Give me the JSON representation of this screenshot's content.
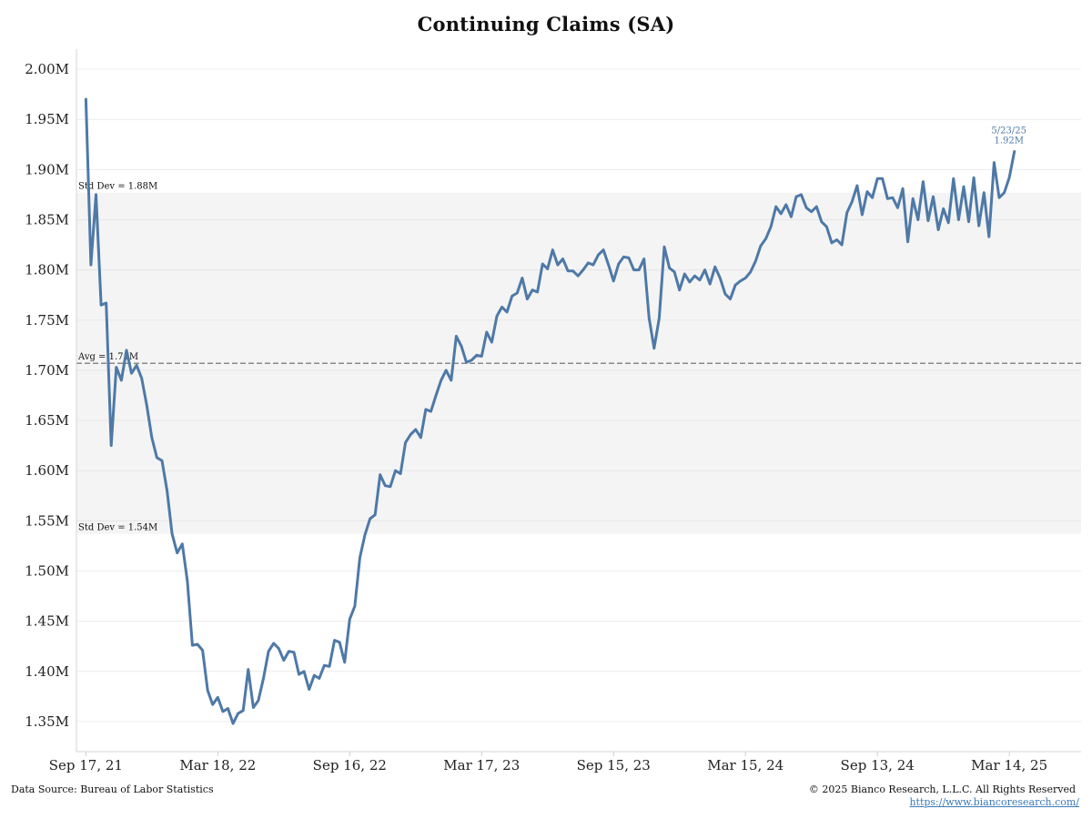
{
  "chart_data": {
    "type": "line",
    "title": "Continuing Claims (SA)",
    "y_unit": "millions",
    "ylim": [
      1.32,
      2.02
    ],
    "yticks": [
      2.0,
      1.95,
      1.9,
      1.85,
      1.8,
      1.75,
      1.7,
      1.65,
      1.6,
      1.55,
      1.5,
      1.45,
      1.4,
      1.35
    ],
    "ytick_labels": [
      "2.00M",
      "1.95M",
      "1.90M",
      "1.85M",
      "1.80M",
      "1.75M",
      "1.70M",
      "1.65M",
      "1.60M",
      "1.55M",
      "1.50M",
      "1.45M",
      "1.40M",
      "1.35M"
    ],
    "xlim": [
      "2021-09-04",
      "2025-06-21"
    ],
    "xticks": [
      "2021-09-17",
      "2022-03-18",
      "2022-09-16",
      "2023-03-17",
      "2023-09-15",
      "2024-03-15",
      "2024-09-13",
      "2025-03-14"
    ],
    "xtick_labels": [
      "Sep 17, 21",
      "Mar 18, 22",
      "Sep 16, 22",
      "Mar 17, 23",
      "Sep 15, 23",
      "Mar 15, 24",
      "Sep 13, 24",
      "Mar 14, 25"
    ],
    "band": {
      "low": 1.537,
      "high": 1.877,
      "upper_label": "Std Dev = 1.88M",
      "lower_label": "Std Dev = 1.54M"
    },
    "average": {
      "value": 1.707,
      "label": "Avg = 1.71M"
    },
    "end_label": {
      "date": "5/23/25",
      "value": "1.92M"
    },
    "grid": "horizontal",
    "series": [
      {
        "color": "#4e79a7",
        "start_date": "2021-09-17",
        "step_days": 7,
        "values": [
          1.97,
          1.805,
          1.875,
          1.765,
          1.767,
          1.625,
          1.703,
          1.69,
          1.72,
          1.697,
          1.705,
          1.692,
          1.665,
          1.633,
          1.613,
          1.61,
          1.58,
          1.537,
          1.518,
          1.527,
          1.49,
          1.426,
          1.427,
          1.421,
          1.381,
          1.367,
          1.374,
          1.36,
          1.363,
          1.348,
          1.358,
          1.361,
          1.402,
          1.364,
          1.371,
          1.393,
          1.42,
          1.428,
          1.423,
          1.411,
          1.42,
          1.419,
          1.397,
          1.4,
          1.382,
          1.396,
          1.393,
          1.406,
          1.405,
          1.431,
          1.429,
          1.409,
          1.452,
          1.465,
          1.513,
          1.536,
          1.552,
          1.556,
          1.596,
          1.585,
          1.584,
          1.6,
          1.597,
          1.628,
          1.636,
          1.641,
          1.633,
          1.661,
          1.659,
          1.675,
          1.69,
          1.7,
          1.69,
          1.734,
          1.724,
          1.708,
          1.71,
          1.715,
          1.714,
          1.738,
          1.728,
          1.754,
          1.763,
          1.758,
          1.774,
          1.777,
          1.792,
          1.771,
          1.78,
          1.778,
          1.806,
          1.801,
          1.82,
          1.805,
          1.811,
          1.799,
          1.799,
          1.794,
          1.8,
          1.807,
          1.805,
          1.815,
          1.82,
          1.805,
          1.789,
          1.806,
          1.813,
          1.812,
          1.8,
          1.8,
          1.811,
          1.752,
          1.722,
          1.752,
          1.823,
          1.802,
          1.798,
          1.78,
          1.796,
          1.788,
          1.794,
          1.79,
          1.8,
          1.786,
          1.803,
          1.792,
          1.776,
          1.771,
          1.785,
          1.789,
          1.792,
          1.798,
          1.809,
          1.824,
          1.831,
          1.843,
          1.863,
          1.856,
          1.865,
          1.853,
          1.873,
          1.875,
          1.862,
          1.858,
          1.863,
          1.848,
          1.843,
          1.827,
          1.83,
          1.825,
          1.857,
          1.868,
          1.884,
          1.855,
          1.878,
          1.872,
          1.891,
          1.891,
          1.871,
          1.872,
          1.862,
          1.881,
          1.828,
          1.871,
          1.85,
          1.888,
          1.849,
          1.873,
          1.84,
          1.861,
          1.847,
          1.891,
          1.85,
          1.883,
          1.848,
          1.892,
          1.844,
          1.877,
          1.833,
          1.907,
          1.872,
          1.877,
          1.892,
          1.918
        ]
      }
    ]
  },
  "footer": {
    "source": "Data Source: Bureau of Labor Statistics",
    "copyright": "© 2025  Bianco Research, L.L.C. All Rights Reserved",
    "url": "https://www.biancoresearch.com/"
  }
}
